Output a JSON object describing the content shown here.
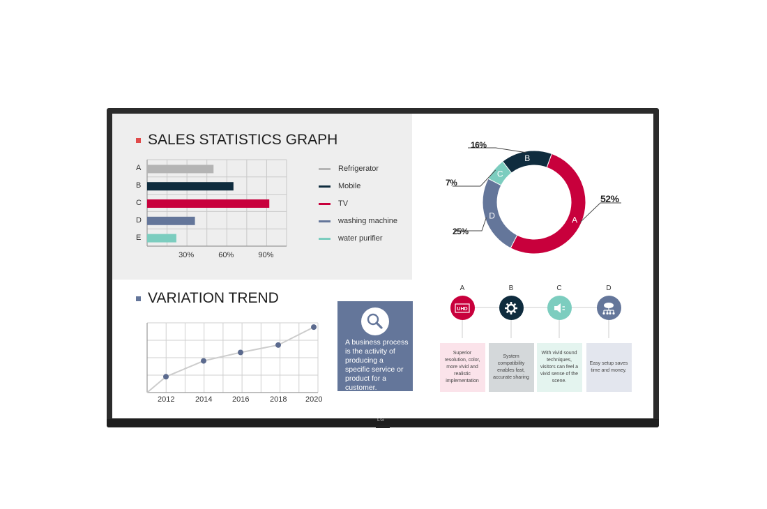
{
  "device": {
    "brand_logo": "LG"
  },
  "sales_section": {
    "title": "SALES STATISTICS GRAPH",
    "accent_color": "#e04a4a"
  },
  "trend_section": {
    "title": "VARIATION TREND",
    "accent_color": "#64769a"
  },
  "chart_data": [
    {
      "type": "bar",
      "orientation": "horizontal",
      "title": "SALES STATISTICS GRAPH",
      "categories": [
        "A",
        "B",
        "C",
        "D",
        "E"
      ],
      "values": [
        50,
        65,
        92,
        36,
        22
      ],
      "colors": [
        "#b4b4b4",
        "#0f2c3e",
        "#c8003c",
        "#64769a",
        "#7ccdbf"
      ],
      "xticks": [
        "30%",
        "60%",
        "90%"
      ],
      "xlim": [
        0,
        105
      ],
      "grid": true,
      "legend": {
        "placement": "right",
        "items": [
          {
            "label": "Refrigerator",
            "color": "#b4b4b4"
          },
          {
            "label": "Mobile",
            "color": "#0f2c3e"
          },
          {
            "label": "TV",
            "color": "#c8003c"
          },
          {
            "label": "washing machine",
            "color": "#64769a"
          },
          {
            "label": "water purifier",
            "color": "#7ccdbf"
          }
        ]
      }
    },
    {
      "type": "pie",
      "style": "donut",
      "slices": [
        {
          "label": "A",
          "value": 52,
          "pct_label": "52%",
          "color": "#c8003c"
        },
        {
          "label": "D",
          "value": 25,
          "pct_label": "25%",
          "color": "#64769a"
        },
        {
          "label": "C",
          "value": 7,
          "pct_label": "7%",
          "color": "#7ccdbf"
        },
        {
          "label": "B",
          "value": 16,
          "pct_label": "16%",
          "color": "#0f2c3e"
        }
      ]
    },
    {
      "type": "line",
      "title": "VARIATION TREND",
      "x": [
        "2012",
        "2014",
        "2016",
        "2018",
        "2020"
      ],
      "values": [
        1.5,
        3.0,
        3.8,
        4.5,
        6.2
      ],
      "ylim": [
        0,
        7
      ],
      "grid": true,
      "line_color": "#cccccc",
      "marker_color": "#5b6a8e"
    }
  ],
  "info_box": {
    "icon": "magnifier-icon",
    "text": "A business process is the activity of producing a specific service or product for a customer."
  },
  "features": [
    {
      "letter": "A",
      "icon": "uhd-icon",
      "icon_text": "UHD",
      "circle_color": "#c8003c",
      "card_color": "#fbe3ea",
      "text": "Superior resolution, color, more vivid and realistic implementation"
    },
    {
      "letter": "B",
      "icon": "gear-icon",
      "circle_color": "#0f2c3e",
      "card_color": "#d4d8da",
      "text": "System compatibility enables fast, accurate sharing"
    },
    {
      "letter": "C",
      "icon": "speaker-icon",
      "circle_color": "#7ccdbf",
      "card_color": "#e4f4ef",
      "text": "With vivid sound techniques, visitors can feel a vivid sense of the scene."
    },
    {
      "letter": "D",
      "icon": "cloud-network-icon",
      "circle_color": "#64769a",
      "card_color": "#e3e6ee",
      "text": "Easy setup saves time and money."
    }
  ]
}
